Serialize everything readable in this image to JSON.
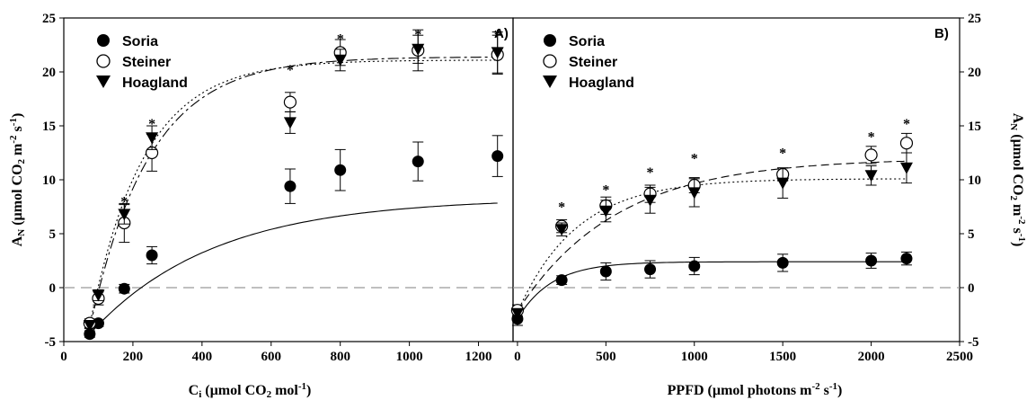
{
  "chart_data": [
    {
      "type": "scatter",
      "panel_label": "A)",
      "xlabel": "C_i (µmol CO_2 mol^-1)",
      "xlabel_parts": {
        "main": "C",
        "sub1": "i",
        "mid": " (µmol CO",
        "sub2": "2",
        "mid2": " mol",
        "sup": "-1",
        "end": ")"
      },
      "ylabel": "A_N (µmol CO_2 m^-2 s^-1)",
      "xlim": [
        0,
        1300
      ],
      "ylim": [
        -5,
        25
      ],
      "xticks": [
        0,
        200,
        400,
        600,
        800,
        1000,
        1200
      ],
      "yticks": [
        -5,
        0,
        5,
        10,
        15,
        20,
        25
      ],
      "zero_line": 0,
      "legend_position": "top-left",
      "series": [
        {
          "name": "Soria",
          "marker": "filled-circle",
          "x": [
            75,
            100,
            175,
            255,
            655,
            800,
            1025,
            1255
          ],
          "y": [
            -4.3,
            -3.3,
            -0.1,
            3.0,
            9.4,
            10.9,
            11.7,
            12.2
          ],
          "err": [
            0.3,
            0.3,
            0.4,
            0.8,
            1.6,
            1.9,
            1.8,
            1.9
          ]
        },
        {
          "name": "Steiner",
          "marker": "open-circle",
          "x": [
            75,
            100,
            175,
            255,
            655,
            800,
            1025,
            1255
          ],
          "y": [
            -3.3,
            -1.0,
            6.0,
            12.5,
            17.2,
            21.8,
            22.0,
            21.6
          ],
          "err": [
            0.4,
            0.6,
            1.8,
            1.7,
            0.9,
            1.2,
            1.9,
            1.8
          ]
        },
        {
          "name": "Hoagland",
          "marker": "filled-triangle-down",
          "x": [
            75,
            100,
            175,
            255,
            655,
            800,
            1025,
            1255
          ],
          "y": [
            -3.5,
            -0.7,
            6.8,
            13.9,
            15.3,
            21.1,
            22.1,
            21.8
          ],
          "err": [
            0.3,
            0.5,
            0.9,
            1.1,
            1.0,
            1.0,
            1.3,
            1.9
          ]
        }
      ],
      "significance_x": [
        175,
        255,
        655,
        800,
        1025,
        1255
      ],
      "significance_y": [
        8.2,
        15.4,
        20.4,
        23.3,
        23.7,
        23.7
      ]
    },
    {
      "type": "scatter",
      "panel_label": "B)",
      "xlabel": "PPFD (µmol photons m^-2 s^-1)",
      "xlabel_parts": {
        "main": "PPFD (µmol photons m",
        "sup1": "-2",
        "mid": " s",
        "sup2": "-1",
        "end": ")"
      },
      "ylabel": "A_N (µmol CO_2 m^-2 s^-1)",
      "xlim": [
        -25,
        2500
      ],
      "ylim": [
        -5,
        25
      ],
      "xticks": [
        0,
        500,
        1000,
        1500,
        2000,
        2500
      ],
      "yticks": [
        -5,
        0,
        5,
        10,
        15,
        20,
        25
      ],
      "zero_line": 0,
      "legend_position": "top-left",
      "series": [
        {
          "name": "Soria",
          "marker": "filled-circle",
          "x": [
            0,
            250,
            500,
            750,
            1000,
            1500,
            2000,
            2200
          ],
          "y": [
            -2.9,
            0.7,
            1.5,
            1.7,
            2.0,
            2.3,
            2.5,
            2.7
          ],
          "err": [
            0.6,
            0.4,
            0.8,
            0.8,
            0.8,
            0.8,
            0.7,
            0.6
          ]
        },
        {
          "name": "Steiner",
          "marker": "open-circle",
          "x": [
            0,
            250,
            500,
            750,
            1000,
            1500,
            2000,
            2200
          ],
          "y": [
            -2.1,
            5.7,
            7.6,
            8.7,
            9.5,
            10.5,
            12.3,
            13.4
          ],
          "err": [
            0.5,
            0.6,
            0.8,
            0.8,
            0.7,
            0.6,
            0.8,
            0.9
          ]
        },
        {
          "name": "Hoagland",
          "marker": "filled-triangle-down",
          "x": [
            0,
            250,
            500,
            750,
            1000,
            1500,
            2000,
            2200
          ],
          "y": [
            -2.4,
            5.4,
            7.1,
            8.1,
            8.8,
            9.7,
            10.4,
            11.1
          ],
          "err": [
            0.4,
            0.6,
            1.0,
            1.2,
            1.3,
            1.4,
            0.9,
            1.4
          ]
        }
      ],
      "significance_x": [
        250,
        500,
        750,
        1000,
        1500,
        2000,
        2200
      ],
      "significance_y": [
        7.7,
        9.3,
        10.9,
        12.2,
        12.7,
        14.2,
        15.4
      ]
    }
  ],
  "panel_a": {
    "label": "A)",
    "legend": [
      "Soria",
      "Steiner",
      "Hoagland"
    ]
  },
  "panel_b": {
    "label": "B)",
    "legend": [
      "Soria",
      "Steiner",
      "Hoagland"
    ]
  },
  "significance_symbol": "*",
  "colors": {
    "axis": "#000000",
    "zero_line": "#999999",
    "marker": "#000000"
  }
}
